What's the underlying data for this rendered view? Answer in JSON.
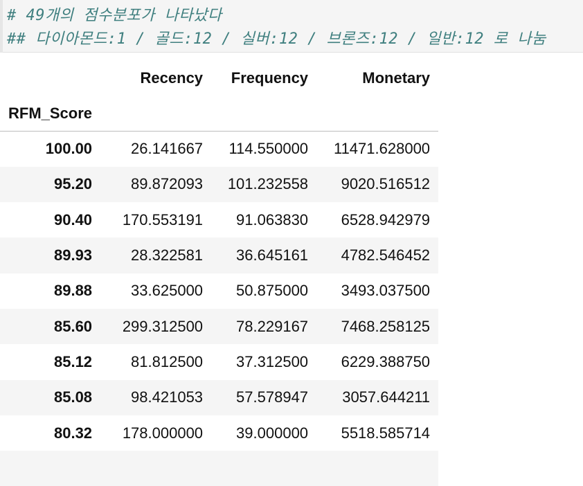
{
  "code_cell": {
    "line1": "# 49개의 점수분포가 나타났다",
    "line2": "## 다이아몬드:1 / 골드:12 / 실버:12 / 브론즈:12 / 일반:12 로 나눔"
  },
  "table": {
    "columns": [
      "Recency",
      "Frequency",
      "Monetary"
    ],
    "index_name": "RFM_Score",
    "rows": [
      {
        "score": "100.00",
        "recency": "26.141667",
        "frequency": "114.550000",
        "monetary": "11471.628000"
      },
      {
        "score": "95.20",
        "recency": "89.872093",
        "frequency": "101.232558",
        "monetary": "9020.516512"
      },
      {
        "score": "90.40",
        "recency": "170.553191",
        "frequency": "91.063830",
        "monetary": "6528.942979"
      },
      {
        "score": "89.93",
        "recency": "28.322581",
        "frequency": "36.645161",
        "monetary": "4782.546452"
      },
      {
        "score": "89.88",
        "recency": "33.625000",
        "frequency": "50.875000",
        "monetary": "3493.037500"
      },
      {
        "score": "85.60",
        "recency": "299.312500",
        "frequency": "78.229167",
        "monetary": "7468.258125"
      },
      {
        "score": "85.12",
        "recency": "81.812500",
        "frequency": "37.312500",
        "monetary": "6229.388750"
      },
      {
        "score": "85.08",
        "recency": "98.421053",
        "frequency": "57.578947",
        "monetary": "3057.644211"
      },
      {
        "score": "80.32",
        "recency": "178.000000",
        "frequency": "39.000000",
        "monetary": "5518.585714"
      }
    ]
  }
}
